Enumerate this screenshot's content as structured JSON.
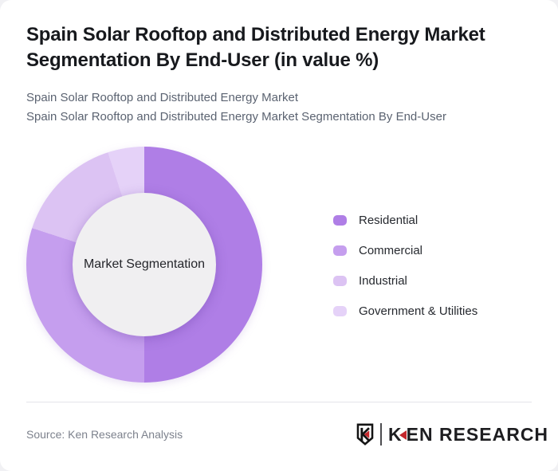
{
  "header": {
    "title": "Spain Solar Rooftop and Distributed Energy Market Segmentation By End-User (in value %)",
    "subtitle_lines": [
      "Spain Solar Rooftop and Distributed Energy Market",
      "Spain Solar Rooftop and Distributed Energy Market Segmentation By End-User"
    ]
  },
  "chart_data": {
    "type": "pie",
    "donut": true,
    "title": "Spain Solar Rooftop and Distributed Energy Market Segmentation By End-User (in value %)",
    "center_label": "Market Segmentation",
    "categories": [
      "Residential",
      "Commercial",
      "Industrial",
      "Government & Utilities"
    ],
    "values": [
      50,
      30,
      15,
      5
    ],
    "unit": "%",
    "colors": [
      "#af7ee6",
      "#c59eee",
      "#dcc3f3",
      "#e5d2f8"
    ],
    "hole_color": "#f0eff1",
    "start_angle_deg": 0,
    "direction": "clockwise",
    "legend_position": "right",
    "data_labels_shown": false
  },
  "footer": {
    "source": "Source: Ken Research Analysis",
    "logo": {
      "emblem_letter": "K",
      "brand_first_letter": "K",
      "brand_rest": "EN RESEARCH",
      "accent_color": "#c4272c",
      "emblem_icon": "shield-k-icon",
      "accent_icon": "left-triangle-icon"
    }
  }
}
